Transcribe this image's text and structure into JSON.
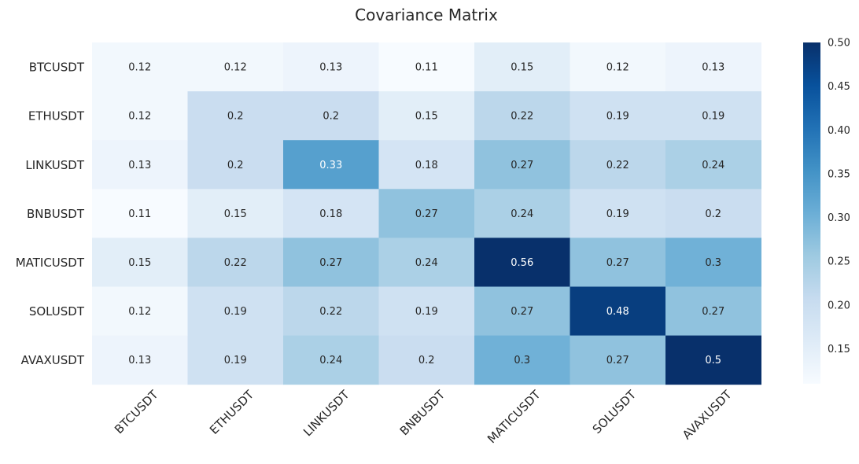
{
  "chart_data": {
    "type": "heatmap",
    "title": "Covariance Matrix",
    "rows": [
      "BTCUSDT",
      "ETHUSDT",
      "LINKUSDT",
      "BNBUSDT",
      "MATICUSDT",
      "SOLUSDT",
      "AVAXUSDT"
    ],
    "columns": [
      "BTCUSDT",
      "ETHUSDT",
      "LINKUSDT",
      "BNBUSDT",
      "MATICUSDT",
      "SOLUSDT",
      "AVAXUSDT"
    ],
    "values": [
      [
        0.12,
        0.12,
        0.13,
        0.11,
        0.15,
        0.12,
        0.13
      ],
      [
        0.12,
        0.2,
        0.2,
        0.15,
        0.22,
        0.19,
        0.19
      ],
      [
        0.13,
        0.2,
        0.33,
        0.18,
        0.27,
        0.22,
        0.24
      ],
      [
        0.11,
        0.15,
        0.18,
        0.27,
        0.24,
        0.19,
        0.2
      ],
      [
        0.15,
        0.22,
        0.27,
        0.24,
        0.56,
        0.27,
        0.3
      ],
      [
        0.12,
        0.19,
        0.22,
        0.19,
        0.27,
        0.48,
        0.27
      ],
      [
        0.13,
        0.19,
        0.24,
        0.2,
        0.3,
        0.27,
        0.5
      ]
    ],
    "cell_labels": [
      [
        "0.12",
        "0.12",
        "0.13",
        "0.11",
        "0.15",
        "0.12",
        "0.13"
      ],
      [
        "0.12",
        "0.2",
        "0.2",
        "0.15",
        "0.22",
        "0.19",
        "0.19"
      ],
      [
        "0.13",
        "0.2",
        "0.33",
        "0.18",
        "0.27",
        "0.22",
        "0.24"
      ],
      [
        "0.11",
        "0.15",
        "0.18",
        "0.27",
        "0.24",
        "0.19",
        "0.2"
      ],
      [
        "0.15",
        "0.22",
        "0.27",
        "0.24",
        "0.56",
        "0.27",
        "0.3"
      ],
      [
        "0.12",
        "0.19",
        "0.22",
        "0.19",
        "0.27",
        "0.48",
        "0.27"
      ],
      [
        "0.13",
        "0.19",
        "0.24",
        "0.2",
        "0.3",
        "0.27",
        "0.5"
      ]
    ],
    "colormap": "Blues",
    "color_range": [
      0.11,
      0.5
    ],
    "colorbar": {
      "ticks": [
        0.15,
        0.2,
        0.25,
        0.3,
        0.35,
        0.4,
        0.45,
        0.5
      ],
      "tick_labels": [
        "0.15",
        "0.20",
        "0.25",
        "0.30",
        "0.35",
        "0.40",
        "0.45",
        "0.50"
      ]
    },
    "grid": false
  }
}
